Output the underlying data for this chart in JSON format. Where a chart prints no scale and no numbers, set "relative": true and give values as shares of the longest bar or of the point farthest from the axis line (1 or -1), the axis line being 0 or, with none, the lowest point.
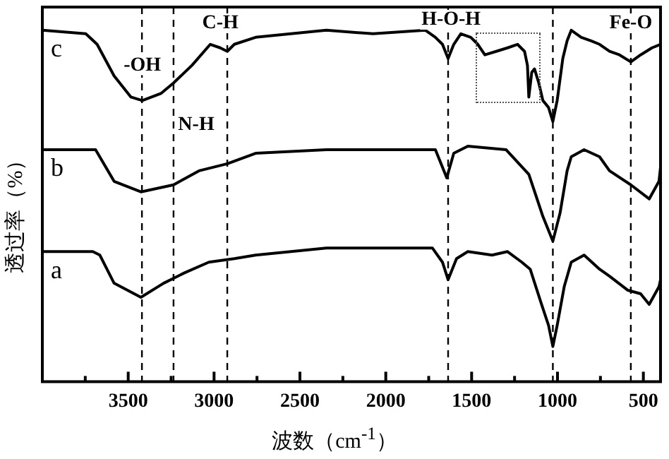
{
  "chart_data": {
    "type": "line",
    "relative": true,
    "xlabel": "波数（cm$^{-1}$）",
    "ylabel": "透过率（%）",
    "xlim": [
      4000,
      400
    ],
    "xticks": [
      {
        "value": 3750,
        "label": null
      },
      3500,
      {
        "value": 3250,
        "label": null
      },
      3000,
      {
        "value": 2750,
        "label": null
      },
      2500,
      {
        "value": 2250,
        "label": null
      },
      2000,
      {
        "value": 1750,
        "label": null
      },
      1500,
      {
        "value": 1250,
        "label": null
      },
      1000,
      {
        "value": 750,
        "label": null
      },
      500
    ],
    "grid": false,
    "legend": false,
    "marker": "none",
    "line_style": "solid",
    "series": [
      {
        "name": "a",
        "color": "#000000",
        "x": [
          4000,
          3706,
          3665,
          3582,
          3426,
          3294,
          3170,
          3030,
          2882,
          2758,
          2346,
          1728,
          1670,
          1637,
          1588,
          1522,
          1381,
          1291,
          1208,
          1159,
          1093,
          1052,
          1027,
          1002,
          961,
          920,
          845,
          755,
          697,
          590,
          516,
          466,
          409,
          400
        ],
        "values": [
          0.37,
          0.37,
          0.36,
          0.28,
          0.24,
          0.28,
          0.31,
          0.34,
          0.35,
          0.36,
          0.38,
          0.38,
          0.34,
          0.29,
          0.35,
          0.37,
          0.36,
          0.37,
          0.34,
          0.32,
          0.22,
          0.16,
          0.1,
          0.16,
          0.27,
          0.34,
          0.36,
          0.32,
          0.3,
          0.26,
          0.25,
          0.22,
          0.27,
          0.29
        ]
      },
      {
        "name": "b",
        "color": "#000000",
        "x": [
          4000,
          3690,
          3582,
          3426,
          3236,
          3088,
          2923,
          2758,
          2346,
          1769,
          1711,
          1645,
          1604,
          1522,
          1299,
          1167,
          1085,
          1027,
          985,
          944,
          920,
          845,
          755,
          697,
          573,
          466,
          409,
          400
        ],
        "values": [
          0.66,
          0.66,
          0.57,
          0.54,
          0.56,
          0.6,
          0.62,
          0.65,
          0.66,
          0.66,
          0.66,
          0.58,
          0.65,
          0.67,
          0.66,
          0.59,
          0.47,
          0.4,
          0.48,
          0.6,
          0.64,
          0.66,
          0.64,
          0.6,
          0.56,
          0.52,
          0.57,
          0.61
        ]
      },
      {
        "name": "c",
        "color": "#000000",
        "x": [
          4000,
          3747,
          3681,
          3582,
          3484,
          3418,
          3310,
          3236,
          3129,
          3022,
          2964,
          2923,
          2882,
          2758,
          2346,
          2074,
          1769,
          1711,
          1670,
          1637,
          1604,
          1563,
          1505,
          1464,
          1423,
          1357,
          1291,
          1233,
          1192,
          1175,
          1167,
          1150,
          1134,
          1109,
          1085,
          1052,
          1027,
          1002,
          969,
          944,
          920,
          862,
          804,
          755,
          697,
          639,
          573,
          516,
          450,
          400
        ],
        "values": [
          1.0,
          0.99,
          0.96,
          0.87,
          0.81,
          0.8,
          0.82,
          0.85,
          0.9,
          0.96,
          0.95,
          0.94,
          0.96,
          0.98,
          1.0,
          0.99,
          1.0,
          0.98,
          0.96,
          0.92,
          0.96,
          0.99,
          0.98,
          0.96,
          0.93,
          0.94,
          0.95,
          0.96,
          0.94,
          0.9,
          0.81,
          0.88,
          0.89,
          0.85,
          0.8,
          0.78,
          0.74,
          0.8,
          0.92,
          0.97,
          1.0,
          0.98,
          0.97,
          0.96,
          0.94,
          0.93,
          0.91,
          0.93,
          0.95,
          0.96
        ]
      }
    ],
    "ref_lines": [
      {
        "axis": "x",
        "value": 3420,
        "line_style": "dashed"
      },
      {
        "axis": "x",
        "value": 3236,
        "line_style": "dashed"
      },
      {
        "axis": "x",
        "value": 2923,
        "line_style": "dashed"
      },
      {
        "axis": "x",
        "value": 1637,
        "line_style": "dashed"
      },
      {
        "axis": "x",
        "value": 1027,
        "line_style": "dashed"
      },
      {
        "axis": "x",
        "value": 573,
        "line_style": "dashed"
      }
    ],
    "annotations": [
      {
        "text": "-OH",
        "x": 3418,
        "y": 0.9
      },
      {
        "text": "N-H",
        "x": 3104,
        "y": 0.73
      },
      {
        "text": "C-H",
        "x": 2964,
        "y": 1.02
      },
      {
        "text": "H-O-H",
        "x": 1620,
        "y": 1.03
      },
      {
        "text": "Fe-O",
        "x": 573,
        "y": 1.02
      }
    ]
  }
}
